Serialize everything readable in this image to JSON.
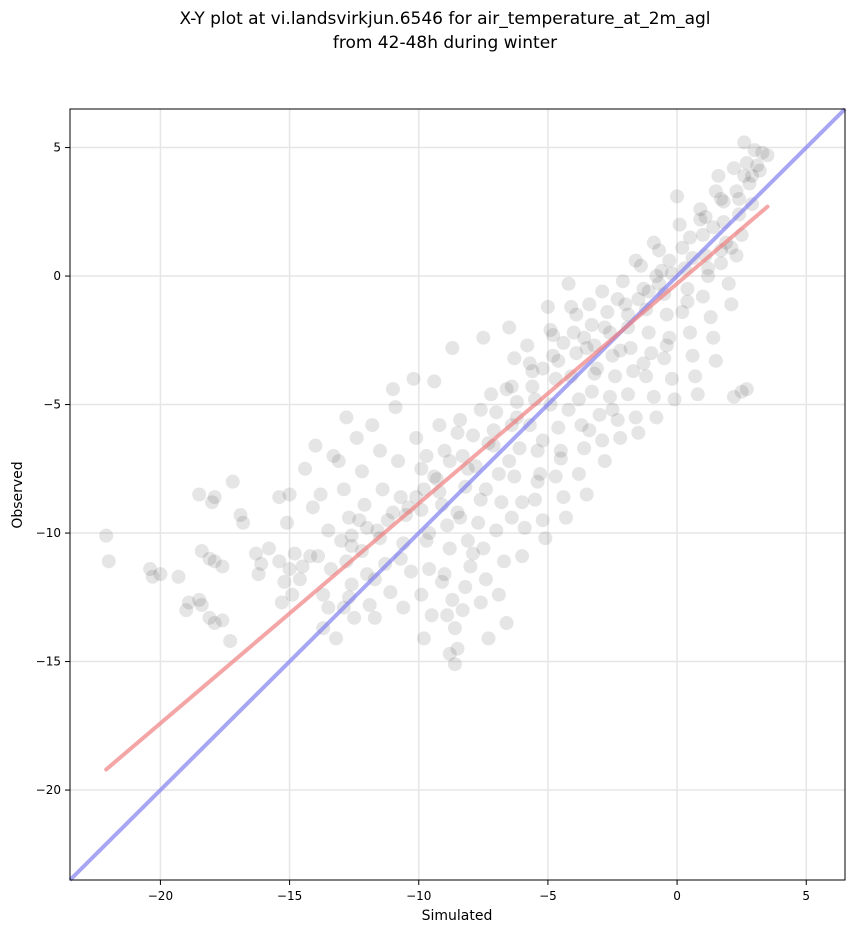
{
  "chart_data": {
    "type": "scatter",
    "title": "X-Y plot at vi.landsvirkjun.6546 for air_temperature_at_2m_agl",
    "subtitle": "from 42-48h during winter",
    "xlabel": "Simulated",
    "ylabel": "Observed",
    "xlim": [
      -23.5,
      6.5
    ],
    "ylim": [
      -23.5,
      6.5
    ],
    "xticks": [
      -20,
      -15,
      -10,
      -5,
      0,
      5
    ],
    "yticks": [
      -20,
      -15,
      -10,
      -5,
      0,
      5
    ],
    "xtick_labels": [
      "−20",
      "−15",
      "−10",
      "−5",
      "0",
      "5"
    ],
    "ytick_labels": [
      "−20",
      "−15",
      "−10",
      "−5",
      "0",
      "5"
    ],
    "grid": true,
    "point_color": "#000000",
    "point_alpha": 0.1,
    "regression_line": {
      "color": "#f08080",
      "x": [
        -22.1,
        3.5
      ],
      "y": [
        -19.2,
        2.7
      ]
    },
    "identity_line": {
      "color": "#8080f0",
      "x": [
        -23.5,
        6.5
      ],
      "y": [
        -23.5,
        6.5
      ]
    },
    "points": [
      [
        -22.1,
        -10.1
      ],
      [
        -22.0,
        -11.1
      ],
      [
        -20.4,
        -11.4
      ],
      [
        -20.3,
        -11.7
      ],
      [
        -20.0,
        -11.6
      ],
      [
        -19.3,
        -11.7
      ],
      [
        -18.9,
        -12.7
      ],
      [
        -19.0,
        -13.0
      ],
      [
        -18.5,
        -12.6
      ],
      [
        -18.4,
        -12.8
      ],
      [
        -18.5,
        -8.5
      ],
      [
        -17.9,
        -8.6
      ],
      [
        -18.0,
        -8.8
      ],
      [
        -18.1,
        -11.0
      ],
      [
        -18.4,
        -10.7
      ],
      [
        -17.9,
        -11.1
      ],
      [
        -17.6,
        -11.3
      ],
      [
        -18.1,
        -13.3
      ],
      [
        -17.9,
        -13.5
      ],
      [
        -17.6,
        -13.4
      ],
      [
        -17.3,
        -14.2
      ],
      [
        -17.2,
        -8.0
      ],
      [
        -16.9,
        -9.3
      ],
      [
        -16.8,
        -9.6
      ],
      [
        -16.3,
        -10.8
      ],
      [
        -15.8,
        -10.6
      ],
      [
        -16.2,
        -11.6
      ],
      [
        -16.1,
        -11.2
      ],
      [
        -15.4,
        -8.6
      ],
      [
        -15.0,
        -8.5
      ],
      [
        -15.1,
        -9.6
      ],
      [
        -14.8,
        -10.8
      ],
      [
        -15.4,
        -11.1
      ],
      [
        -15.2,
        -11.9
      ],
      [
        -15.3,
        -12.7
      ],
      [
        -14.9,
        -12.4
      ],
      [
        -14.5,
        -11.3
      ],
      [
        -14.2,
        -10.9
      ],
      [
        -14.4,
        -7.5
      ],
      [
        -14.1,
        -9.0
      ],
      [
        -13.8,
        -8.5
      ],
      [
        -14.0,
        -6.6
      ],
      [
        -13.5,
        -9.9
      ],
      [
        -13.7,
        -12.4
      ],
      [
        -13.5,
        -12.9
      ],
      [
        -13.2,
        -14.1
      ],
      [
        -13.7,
        -13.7
      ],
      [
        -13.3,
        -7.0
      ],
      [
        -13.1,
        -7.2
      ],
      [
        -12.9,
        -8.3
      ],
      [
        -12.7,
        -9.4
      ],
      [
        -12.6,
        -10.1
      ],
      [
        -12.8,
        -11.1
      ],
      [
        -12.6,
        -12.0
      ],
      [
        -12.9,
        -12.9
      ],
      [
        -12.5,
        -13.3
      ],
      [
        -12.8,
        -5.5
      ],
      [
        -12.4,
        -6.3
      ],
      [
        -12.2,
        -7.6
      ],
      [
        -12.1,
        -8.9
      ],
      [
        -12.0,
        -9.8
      ],
      [
        -12.2,
        -10.7
      ],
      [
        -12.0,
        -11.6
      ],
      [
        -11.9,
        -12.8
      ],
      [
        -11.7,
        -13.3
      ],
      [
        -11.8,
        -5.8
      ],
      [
        -11.5,
        -6.8
      ],
      [
        -11.4,
        -8.3
      ],
      [
        -11.2,
        -9.5
      ],
      [
        -11.5,
        -10.2
      ],
      [
        -11.3,
        -11.2
      ],
      [
        -11.1,
        -12.3
      ],
      [
        -11.0,
        -4.4
      ],
      [
        -10.9,
        -5.1
      ],
      [
        -10.8,
        -7.2
      ],
      [
        -10.7,
        -8.6
      ],
      [
        -10.5,
        -9.3
      ],
      [
        -10.6,
        -10.4
      ],
      [
        -10.3,
        -11.5
      ],
      [
        -10.6,
        -12.9
      ],
      [
        -10.2,
        -4.0
      ],
      [
        -10.1,
        -6.3
      ],
      [
        -9.9,
        -7.5
      ],
      [
        -9.8,
        -8.3
      ],
      [
        -9.9,
        -9.1
      ],
      [
        -9.7,
        -10.3
      ],
      [
        -9.6,
        -11.4
      ],
      [
        -9.9,
        -12.4
      ],
      [
        -9.5,
        -13.2
      ],
      [
        -9.8,
        -14.1
      ],
      [
        -9.4,
        -4.1
      ],
      [
        -9.2,
        -5.8
      ],
      [
        -9.0,
        -6.8
      ],
      [
        -9.3,
        -7.9
      ],
      [
        -9.1,
        -8.9
      ],
      [
        -8.9,
        -9.7
      ],
      [
        -8.8,
        -10.6
      ],
      [
        -9.0,
        -11.6
      ],
      [
        -8.7,
        -12.6
      ],
      [
        -8.9,
        -13.2
      ],
      [
        -8.6,
        -13.7
      ],
      [
        -8.8,
        -14.7
      ],
      [
        -8.6,
        -15.1
      ],
      [
        -8.5,
        -14.5
      ],
      [
        -8.7,
        -2.8
      ],
      [
        -8.4,
        -5.6
      ],
      [
        -8.3,
        -7.0
      ],
      [
        -8.2,
        -8.2
      ],
      [
        -8.4,
        -9.4
      ],
      [
        -8.1,
        -10.3
      ],
      [
        -8.0,
        -11.3
      ],
      [
        -8.2,
        -12.1
      ],
      [
        -8.3,
        -13.0
      ],
      [
        -7.9,
        -6.2
      ],
      [
        -7.8,
        -7.4
      ],
      [
        -7.6,
        -8.7
      ],
      [
        -7.7,
        -9.6
      ],
      [
        -7.5,
        -10.6
      ],
      [
        -7.4,
        -11.8
      ],
      [
        -7.6,
        -12.7
      ],
      [
        -7.3,
        -14.1
      ],
      [
        -7.5,
        -2.4
      ],
      [
        -7.2,
        -4.6
      ],
      [
        -7.0,
        -5.3
      ],
      [
        -7.1,
        -6.6
      ],
      [
        -6.9,
        -7.7
      ],
      [
        -6.8,
        -8.8
      ],
      [
        -7.0,
        -9.9
      ],
      [
        -6.7,
        -11.1
      ],
      [
        -6.9,
        -12.4
      ],
      [
        -6.6,
        -13.5
      ],
      [
        -6.5,
        -2.0
      ],
      [
        -6.3,
        -3.2
      ],
      [
        -6.4,
        -4.3
      ],
      [
        -6.2,
        -5.5
      ],
      [
        -6.1,
        -6.7
      ],
      [
        -6.3,
        -7.8
      ],
      [
        -6.0,
        -8.8
      ],
      [
        -5.9,
        -9.8
      ],
      [
        -6.0,
        -10.9
      ],
      [
        -5.8,
        -2.7
      ],
      [
        -5.6,
        -3.7
      ],
      [
        -5.5,
        -4.8
      ],
      [
        -5.7,
        -5.8
      ],
      [
        -5.4,
        -6.8
      ],
      [
        -5.3,
        -7.7
      ],
      [
        -5.5,
        -8.7
      ],
      [
        -5.2,
        -9.5
      ],
      [
        -5.1,
        -10.2
      ],
      [
        -5.0,
        -1.2
      ],
      [
        -4.9,
        -2.1
      ],
      [
        -4.8,
        -3.1
      ],
      [
        -4.7,
        -4.0
      ],
      [
        -4.9,
        -5.0
      ],
      [
        -4.6,
        -5.9
      ],
      [
        -4.5,
        -6.8
      ],
      [
        -4.7,
        -7.8
      ],
      [
        -4.4,
        -8.6
      ],
      [
        -4.3,
        -9.4
      ],
      [
        -4.2,
        -0.3
      ],
      [
        -4.1,
        -1.2
      ],
      [
        -4.0,
        -2.2
      ],
      [
        -3.9,
        -3.0
      ],
      [
        -4.1,
        -3.9
      ],
      [
        -3.8,
        -4.8
      ],
      [
        -3.7,
        -5.8
      ],
      [
        -3.6,
        -6.7
      ],
      [
        -3.8,
        -7.7
      ],
      [
        -3.5,
        -8.5
      ],
      [
        -3.4,
        -1.1
      ],
      [
        -3.3,
        -1.9
      ],
      [
        -3.2,
        -2.7
      ],
      [
        -3.1,
        -3.6
      ],
      [
        -3.3,
        -4.5
      ],
      [
        -3.0,
        -5.4
      ],
      [
        -2.9,
        -6.4
      ],
      [
        -2.8,
        -7.2
      ],
      [
        -2.7,
        -1.4
      ],
      [
        -2.6,
        -2.2
      ],
      [
        -2.5,
        -3.1
      ],
      [
        -2.4,
        -3.9
      ],
      [
        -2.6,
        -4.7
      ],
      [
        -2.3,
        -5.6
      ],
      [
        -2.2,
        -6.3
      ],
      [
        -2.1,
        -0.2
      ],
      [
        -2.0,
        -1.1
      ],
      [
        -1.9,
        -2.0
      ],
      [
        -1.8,
        -2.8
      ],
      [
        -1.7,
        -3.7
      ],
      [
        -1.9,
        -4.6
      ],
      [
        -1.6,
        -5.5
      ],
      [
        -1.5,
        -6.1
      ],
      [
        -1.4,
        0.4
      ],
      [
        -1.3,
        -0.5
      ],
      [
        -1.2,
        -1.3
      ],
      [
        -1.1,
        -2.2
      ],
      [
        -1.0,
        -3.0
      ],
      [
        -1.2,
        -3.9
      ],
      [
        -0.9,
        -4.7
      ],
      [
        -0.8,
        -5.5
      ],
      [
        -0.7,
        1.0
      ],
      [
        -0.6,
        0.2
      ],
      [
        -0.5,
        -0.7
      ],
      [
        -0.4,
        -1.5
      ],
      [
        -0.3,
        -2.4
      ],
      [
        -0.5,
        -3.2
      ],
      [
        -0.2,
        -4.0
      ],
      [
        -0.1,
        -4.8
      ],
      [
        0.0,
        3.1
      ],
      [
        0.1,
        2.0
      ],
      [
        0.2,
        1.1
      ],
      [
        0.3,
        0.3
      ],
      [
        0.4,
        -0.5
      ],
      [
        0.2,
        -1.4
      ],
      [
        0.5,
        -2.2
      ],
      [
        0.6,
        -3.1
      ],
      [
        0.7,
        -3.9
      ],
      [
        0.8,
        -4.6
      ],
      [
        0.9,
        2.6
      ],
      [
        1.0,
        1.6
      ],
      [
        1.1,
        0.8
      ],
      [
        1.2,
        0.0
      ],
      [
        1.0,
        -0.8
      ],
      [
        1.3,
        -1.6
      ],
      [
        1.4,
        -2.4
      ],
      [
        1.5,
        -3.3
      ],
      [
        1.6,
        3.9
      ],
      [
        1.7,
        3.0
      ],
      [
        1.8,
        2.1
      ],
      [
        1.9,
        1.3
      ],
      [
        1.7,
        0.5
      ],
      [
        2.0,
        -0.3
      ],
      [
        2.1,
        -1.1
      ],
      [
        2.2,
        4.2
      ],
      [
        2.3,
        3.3
      ],
      [
        2.4,
        2.4
      ],
      [
        2.5,
        1.6
      ],
      [
        2.3,
        0.8
      ],
      [
        2.6,
        5.2
      ],
      [
        2.7,
        4.4
      ],
      [
        2.8,
        3.6
      ],
      [
        2.9,
        2.8
      ],
      [
        3.0,
        4.9
      ],
      [
        3.2,
        4.1
      ],
      [
        3.3,
        4.8
      ],
      [
        3.5,
        4.7
      ],
      [
        2.2,
        -4.7
      ],
      [
        2.5,
        -4.5
      ],
      [
        2.7,
        -4.4
      ],
      [
        -1.1,
        -0.6
      ],
      [
        -0.8,
        0.0
      ],
      [
        -0.3,
        0.6
      ],
      [
        0.6,
        0.7
      ],
      [
        1.4,
        1.9
      ],
      [
        1.8,
        2.9
      ],
      [
        -2.3,
        -0.9
      ],
      [
        -3.6,
        -2.4
      ],
      [
        -4.4,
        -2.6
      ],
      [
        -5.2,
        -3.6
      ],
      [
        -6.2,
        -4.9
      ],
      [
        -7.3,
        -6.5
      ],
      [
        -8.1,
        -7.5
      ],
      [
        -9.2,
        -8.4
      ],
      [
        -10.4,
        -9.0
      ],
      [
        -11.6,
        -9.9
      ],
      [
        -12.6,
        -10.5
      ],
      [
        -13.4,
        -11.4
      ],
      [
        -14.6,
        -11.8
      ],
      [
        -9.7,
        -7.0
      ],
      [
        -8.5,
        -6.1
      ],
      [
        -7.6,
        -5.2
      ],
      [
        -6.6,
        -4.4
      ],
      [
        -5.7,
        -3.4
      ],
      [
        -4.8,
        -2.3
      ],
      [
        -3.9,
        -1.5
      ],
      [
        -2.9,
        -0.6
      ],
      [
        -1.6,
        0.6
      ],
      [
        -0.9,
        1.3
      ],
      [
        0.9,
        2.2
      ],
      [
        1.5,
        3.3
      ],
      [
        2.6,
        3.9
      ],
      [
        -2.2,
        -2.9
      ],
      [
        -3.2,
        -3.8
      ],
      [
        -4.2,
        -5.2
      ],
      [
        -5.2,
        -6.4
      ],
      [
        -6.5,
        -7.2
      ],
      [
        -7.4,
        -8.3
      ],
      [
        -8.5,
        -9.2
      ],
      [
        -9.6,
        -10.0
      ],
      [
        -10.7,
        -11.0
      ],
      [
        -11.7,
        -11.8
      ],
      [
        -12.7,
        -12.5
      ],
      [
        -9.1,
        -11.9
      ],
      [
        -7.9,
        -10.8
      ],
      [
        -6.4,
        -9.4
      ],
      [
        -5.4,
        -8.0
      ],
      [
        -4.5,
        -7.1
      ],
      [
        -3.4,
        -6.0
      ],
      [
        -2.5,
        -5.2
      ],
      [
        -1.3,
        -3.4
      ],
      [
        -0.4,
        -2.7
      ],
      [
        0.4,
        -1.0
      ],
      [
        1.2,
        0.3
      ],
      [
        2.1,
        1.1
      ],
      [
        -0.2,
        0.1
      ],
      [
        -0.7,
        -0.3
      ],
      [
        -1.5,
        -0.9
      ],
      [
        -1.9,
        -1.5
      ],
      [
        -2.8,
        -2.0
      ],
      [
        -3.5,
        -2.8
      ],
      [
        -4.6,
        -3.3
      ],
      [
        -5.6,
        -4.3
      ],
      [
        -6.4,
        -5.8
      ],
      [
        -7.1,
        -6.0
      ],
      [
        -8.8,
        -7.2
      ],
      [
        -9.4,
        -7.8
      ],
      [
        -10.1,
        -8.6
      ],
      [
        -11.0,
        -9.2
      ],
      [
        -12.3,
        -9.5
      ],
      [
        -13.0,
        -10.3
      ],
      [
        -13.9,
        -10.9
      ],
      [
        -15.0,
        -11.4
      ],
      [
        0.5,
        1.5
      ],
      [
        1.1,
        2.3
      ],
      [
        1.7,
        1.0
      ],
      [
        2.4,
        3.0
      ],
      [
        2.9,
        3.9
      ],
      [
        3.1,
        4.3
      ]
    ]
  }
}
